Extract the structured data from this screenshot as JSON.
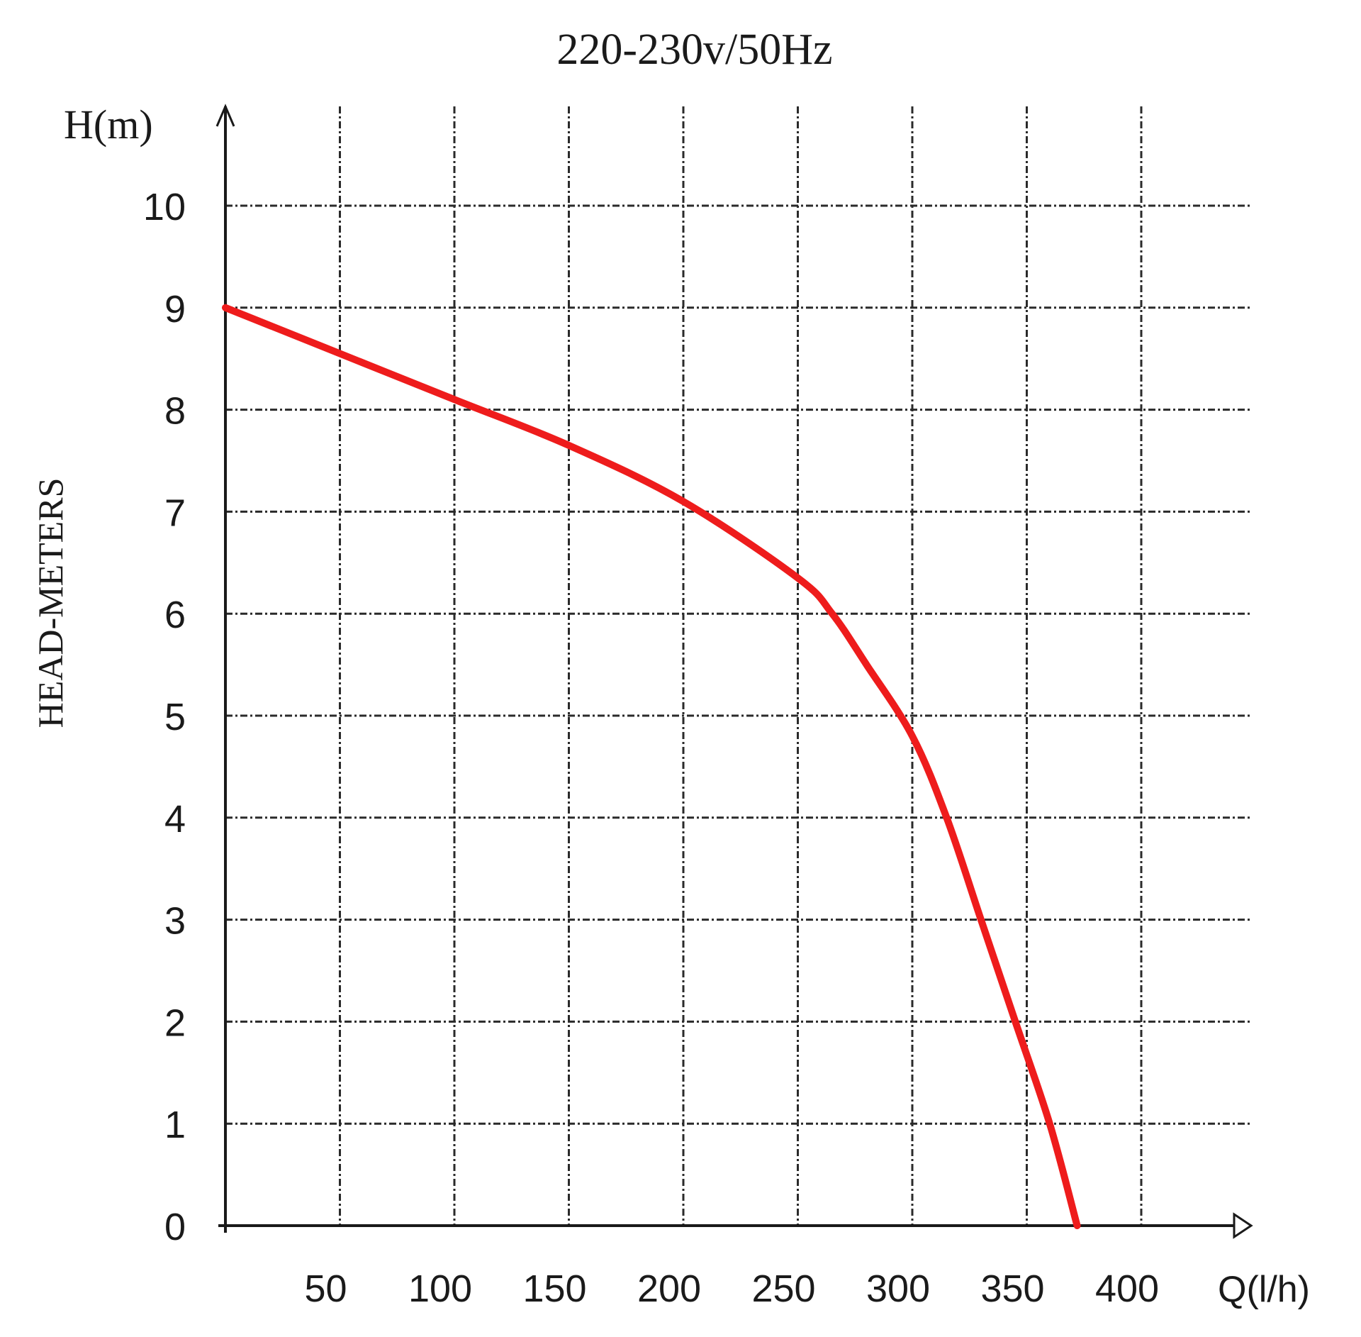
{
  "chart_data": {
    "type": "line",
    "title": "220-230v/50Hz",
    "ylabel": "HEAD-METERS",
    "y_unit_label": "H(m)",
    "x_unit_label": "Q(l/h)",
    "x_ticks": [
      "50",
      "100",
      "150",
      "200",
      "250",
      "300",
      "350",
      "400"
    ],
    "y_ticks": [
      "0",
      "1",
      "2",
      "3",
      "4",
      "5",
      "6",
      "7",
      "8",
      "9",
      "10"
    ],
    "xlim": [
      0,
      450
    ],
    "ylim": [
      0,
      11
    ],
    "grid": true,
    "series": [
      {
        "color": "#ee1c1c",
        "x": [
          0,
          50,
          100,
          150,
          200,
          250,
          265,
          280,
          300,
          315,
          330,
          345,
          360,
          372
        ],
        "y": [
          9.0,
          8.55,
          8.1,
          7.65,
          7.1,
          6.35,
          6.0,
          5.5,
          4.8,
          4.0,
          3.0,
          2.0,
          1.0,
          0.0
        ]
      }
    ]
  }
}
